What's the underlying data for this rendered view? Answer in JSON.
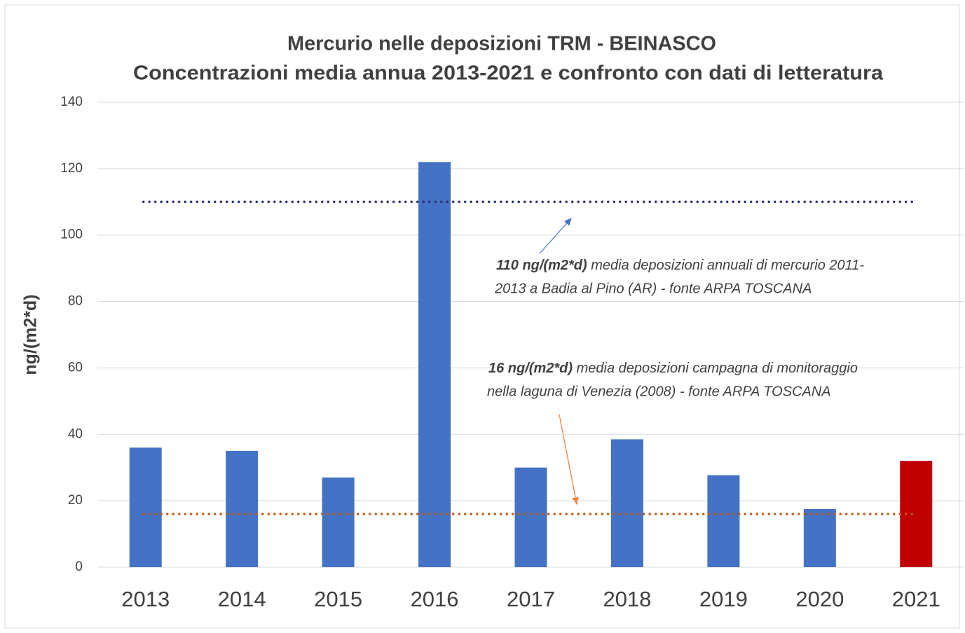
{
  "chart_data": {
    "type": "bar",
    "title": [
      "Mercurio nelle deposizioni TRM - BEINASCO",
      "Concentrazioni media annua 2013-2021 e confronto con dati di letteratura"
    ],
    "y_label": "ng/(m2*d)",
    "categories": [
      "2013",
      "2014",
      "2015",
      "2016",
      "2017",
      "2018",
      "2019",
      "2020",
      "2021"
    ],
    "values": [
      36,
      35,
      27,
      122,
      30,
      38.5,
      27.7,
      17.5,
      32
    ],
    "colors": [
      "#4472c4",
      "#4472c4",
      "#4472c4",
      "#4472c4",
      "#4472c4",
      "#4472c4",
      "#4472c4",
      "#4472c4",
      "#c00000"
    ],
    "ylim": [
      0,
      140
    ],
    "yticks": [
      0,
      20,
      40,
      60,
      80,
      100,
      120,
      140
    ],
    "grid": true,
    "reference_lines": [
      {
        "value": 110,
        "color": "#2e3178",
        "bold": "110 ng/(m2*d)",
        "lines": [
          " media deposizioni annuali di mercurio 2011-",
          "2013 a Badia al Pino (AR) - fonte ARPA TOSCANA"
        ]
      },
      {
        "value": 16,
        "color": "#c55a11",
        "bold": "16  ng/(m2*d)",
        "lines": [
          " media deposizioni campagna di monitoraggio",
          "nella laguna di Venezia (2008) - fonte ARPA TOSCANA"
        ]
      }
    ]
  }
}
